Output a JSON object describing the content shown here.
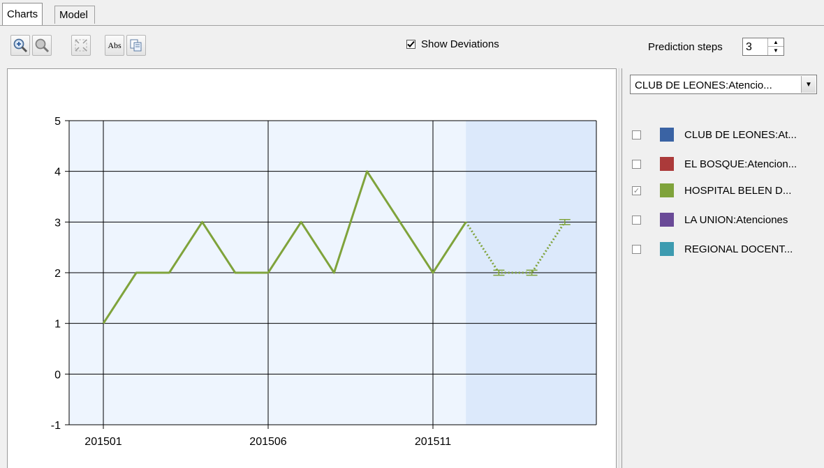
{
  "tabs": [
    {
      "label": "Charts"
    },
    {
      "label": "Model"
    }
  ],
  "toolbar": {
    "zoom_in_icon": "zoom-in-icon",
    "zoom_out_icon": "zoom-out-icon",
    "fit_icon": "fit-to-view-icon",
    "abs_label": "Abs",
    "copy_icon": "copy-icon",
    "show_deviations_label": "Show Deviations",
    "show_deviations_checked": true,
    "prediction_steps_label": "Prediction steps",
    "prediction_steps_value": "3"
  },
  "series_dropdown": {
    "selected": "CLUB DE LEONES:Atencio..."
  },
  "legend": [
    {
      "label": "CLUB DE LEONES:At...",
      "color": "#3a63a4",
      "checked": false
    },
    {
      "label": "EL BOSQUE:Atencion...",
      "color": "#ab3a3a",
      "checked": false
    },
    {
      "label": "HOSPITAL BELEN D...",
      "color": "#7fa33b",
      "checked": true
    },
    {
      "label": "LA UNION:Atenciones",
      "color": "#6a4a97",
      "checked": false
    },
    {
      "label": "REGIONAL DOCENT...",
      "color": "#3d9bb0",
      "checked": false
    }
  ],
  "chart_data": {
    "type": "line",
    "x_tick_labels": [
      "201501",
      "201506",
      "201511"
    ],
    "y_tick_labels": [
      "5",
      "4",
      "3",
      "2",
      "1",
      "0",
      "-1"
    ],
    "ylim": [
      -1,
      5
    ],
    "grid": true,
    "series": [
      {
        "values": [
          1,
          2,
          2,
          3,
          2,
          2,
          3,
          2,
          4,
          3,
          2,
          3
        ],
        "color": "#7fa33b",
        "style": "solid"
      },
      {
        "values": [
          3,
          2,
          2,
          3
        ],
        "color": "#7fa33b",
        "style": "dotted",
        "start_index": 11,
        "deviations": [
          0,
          0.05,
          0.05,
          0.05
        ],
        "forecast": true
      }
    ],
    "forecast_region_color": "#dce9fb",
    "plot_background": "#eef5fe"
  }
}
